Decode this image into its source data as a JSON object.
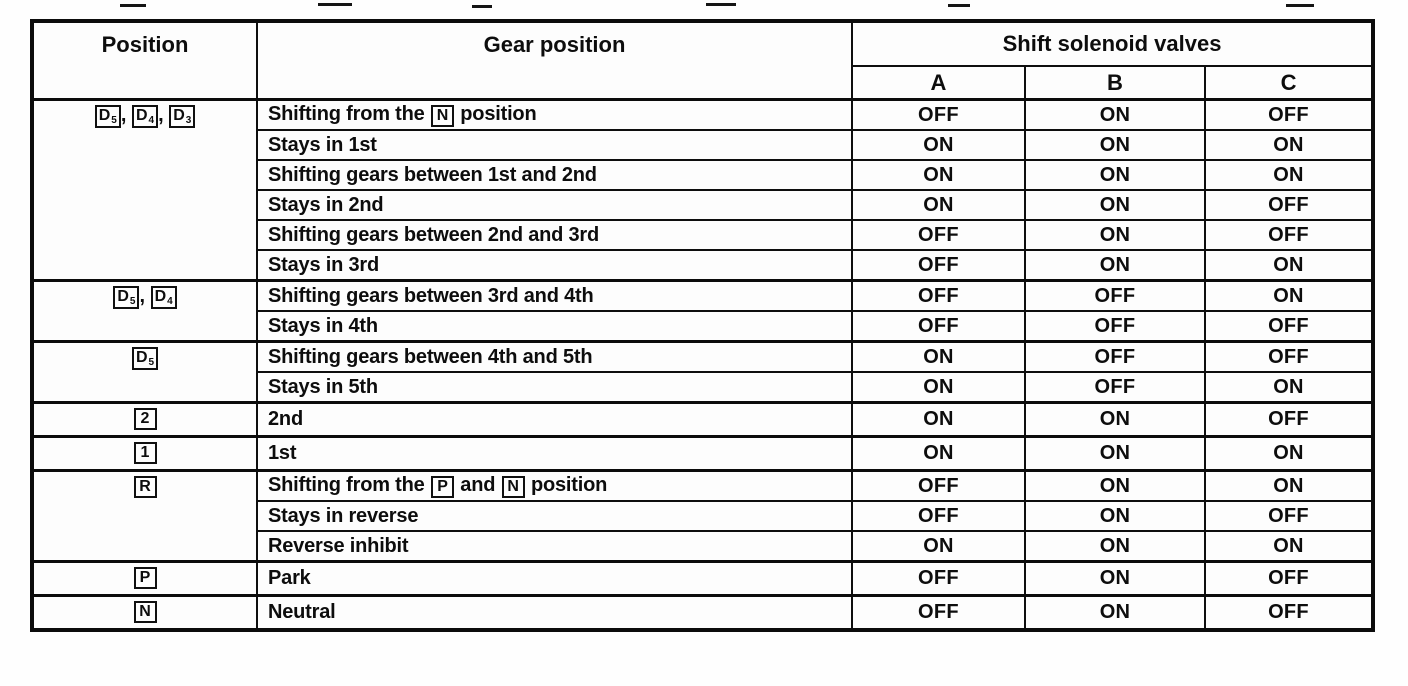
{
  "table": {
    "border_color": "#0c0c0c",
    "text_color": "#0d0d0d",
    "background_color": "#fdfdfd",
    "header": {
      "position": "Position",
      "gear_position": "Gear position",
      "solenoid_group": "Shift solenoid valves",
      "solenoid_columns": [
        "A",
        "B",
        "C"
      ]
    },
    "groups": [
      {
        "position_icons": [
          {
            "main": "D",
            "sub": "5"
          },
          {
            "main": "D",
            "sub": "4"
          },
          {
            "main": "D",
            "sub": "3"
          }
        ],
        "rows": [
          {
            "gear_parts": [
              {
                "text": "Shifting from the "
              },
              {
                "icon": "N"
              },
              {
                "text": " position"
              }
            ],
            "values": [
              "OFF",
              "ON",
              "OFF"
            ]
          },
          {
            "gear_parts": [
              {
                "text": "Stays in 1st"
              }
            ],
            "values": [
              "ON",
              "ON",
              "ON"
            ]
          },
          {
            "gear_parts": [
              {
                "text": "Shifting gears between 1st and 2nd"
              }
            ],
            "values": [
              "ON",
              "ON",
              "ON"
            ]
          },
          {
            "gear_parts": [
              {
                "text": "Stays in 2nd"
              }
            ],
            "values": [
              "ON",
              "ON",
              "OFF"
            ]
          },
          {
            "gear_parts": [
              {
                "text": "Shifting gears between 2nd and 3rd"
              }
            ],
            "values": [
              "OFF",
              "ON",
              "OFF"
            ]
          },
          {
            "gear_parts": [
              {
                "text": "Stays in 3rd"
              }
            ],
            "values": [
              "OFF",
              "ON",
              "ON"
            ]
          }
        ]
      },
      {
        "position_icons": [
          {
            "main": "D",
            "sub": "5"
          },
          {
            "main": "D",
            "sub": "4"
          }
        ],
        "rows": [
          {
            "gear_parts": [
              {
                "text": "Shifting gears between 3rd and 4th"
              }
            ],
            "values": [
              "OFF",
              "OFF",
              "ON"
            ]
          },
          {
            "gear_parts": [
              {
                "text": "Stays in 4th"
              }
            ],
            "values": [
              "OFF",
              "OFF",
              "OFF"
            ]
          }
        ]
      },
      {
        "position_icons": [
          {
            "main": "D",
            "sub": "5"
          }
        ],
        "rows": [
          {
            "gear_parts": [
              {
                "text": "Shifting gears between 4th and 5th"
              }
            ],
            "values": [
              "ON",
              "OFF",
              "OFF"
            ]
          },
          {
            "gear_parts": [
              {
                "text": "Stays in 5th"
              }
            ],
            "values": [
              "ON",
              "OFF",
              "ON"
            ]
          }
        ]
      },
      {
        "position_icons": [
          {
            "main": "2"
          }
        ],
        "rows": [
          {
            "gear_parts": [
              {
                "text": "2nd"
              }
            ],
            "values": [
              "ON",
              "ON",
              "OFF"
            ]
          }
        ]
      },
      {
        "position_icons": [
          {
            "main": "1"
          }
        ],
        "rows": [
          {
            "gear_parts": [
              {
                "text": "1st"
              }
            ],
            "values": [
              "ON",
              "ON",
              "ON"
            ]
          }
        ]
      },
      {
        "position_icons": [
          {
            "main": "R"
          }
        ],
        "rows": [
          {
            "gear_parts": [
              {
                "text": "Shifting from the "
              },
              {
                "icon": "P"
              },
              {
                "text": " and "
              },
              {
                "icon": "N"
              },
              {
                "text": " position"
              }
            ],
            "values": [
              "OFF",
              "ON",
              "ON"
            ]
          },
          {
            "gear_parts": [
              {
                "text": "Stays in reverse"
              }
            ],
            "values": [
              "OFF",
              "ON",
              "OFF"
            ]
          },
          {
            "gear_parts": [
              {
                "text": "Reverse inhibit"
              }
            ],
            "values": [
              "ON",
              "ON",
              "ON"
            ]
          }
        ]
      },
      {
        "position_icons": [
          {
            "main": "P"
          }
        ],
        "rows": [
          {
            "gear_parts": [
              {
                "text": "Park"
              }
            ],
            "values": [
              "OFF",
              "ON",
              "OFF"
            ]
          }
        ]
      },
      {
        "position_icons": [
          {
            "main": "N"
          }
        ],
        "rows": [
          {
            "gear_parts": [
              {
                "text": "Neutral"
              }
            ],
            "values": [
              "OFF",
              "ON",
              "OFF"
            ]
          }
        ]
      }
    ]
  }
}
